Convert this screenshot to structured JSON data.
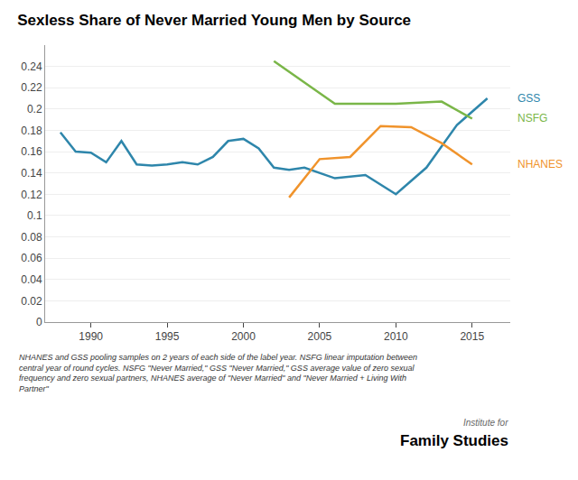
{
  "chart_data": {
    "type": "line",
    "title": "Sexless Share of Never Married Young Men by Source",
    "series": [
      {
        "name": "GSS",
        "color": "#2e86ab",
        "x": [
          1988,
          1989,
          1990,
          1991,
          1992,
          1993,
          1994,
          1995,
          1996,
          1997,
          1998,
          1999,
          2000,
          2001,
          2002,
          2003,
          2004,
          2006,
          2008,
          2010,
          2012,
          2014,
          2016
        ],
        "values": [
          0.178,
          0.16,
          0.159,
          0.15,
          0.17,
          0.148,
          0.147,
          0.148,
          0.15,
          0.148,
          0.155,
          0.17,
          0.172,
          0.163,
          0.145,
          0.143,
          0.145,
          0.135,
          0.138,
          0.12,
          0.145,
          0.185,
          0.21
        ]
      },
      {
        "name": "NSFG",
        "color": "#7ab648",
        "x": [
          2002,
          2006,
          2010,
          2013,
          2015
        ],
        "values": [
          0.245,
          0.205,
          0.205,
          0.207,
          0.191
        ]
      },
      {
        "name": "NHANES",
        "color": "#f0932b",
        "x": [
          2003,
          2005,
          2007,
          2009,
          2011,
          2013,
          2015
        ],
        "values": [
          0.117,
          0.153,
          0.155,
          0.184,
          0.183,
          0.168,
          0.148
        ]
      }
    ],
    "xlim": [
      1987,
      2017.5
    ],
    "xticks": [
      1990,
      1995,
      2000,
      2005,
      2010,
      2015
    ],
    "ylim": [
      0,
      0.26
    ],
    "yticks": [
      0,
      0.02,
      0.04,
      0.06,
      0.08,
      0.1,
      0.12,
      0.14,
      0.16,
      0.18,
      0.2,
      0.22,
      0.24
    ],
    "grid": "y",
    "annotations": [
      "NHANES and GSS pooling samples on 2 years of each side of the label year. NSFG linear imputation between\ncentral year of round cycles. NSFG \"Never Married,\" GSS \"Never Married,\" GSS average value of zero sexual\nfrequency and zero sexual partners, NHANES average of \"Never Married\" and \"Never Married + Living With\nPartner\"",
      "Institute for",
      "Family Studies"
    ]
  }
}
